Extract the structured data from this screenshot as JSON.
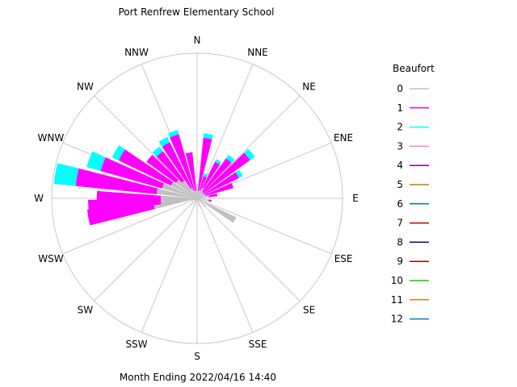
{
  "chart_data": {
    "type": "wind-rose",
    "title": "Port Renfrew Elementary School",
    "subtitle": "Month Ending 2022/04/16 14:40",
    "directions": [
      "N",
      "NNE",
      "NE",
      "ENE",
      "E",
      "ESE",
      "SE",
      "SSE",
      "S",
      "SSW",
      "SW",
      "WSW",
      "W",
      "WNW",
      "NW",
      "NNW"
    ],
    "sector_angles_deg": [
      0,
      22.5,
      45,
      67.5,
      90,
      112.5,
      135,
      157.5,
      180,
      202.5,
      225,
      247.5,
      270,
      292.5,
      315,
      337.5
    ],
    "legend": {
      "title": "Beaufort",
      "entries": [
        {
          "label": "0",
          "color": "#c0c0c0"
        },
        {
          "label": "1",
          "color": "#ff00ff"
        },
        {
          "label": "2",
          "color": "#00ffff"
        },
        {
          "label": "3",
          "color": "#ff80c0"
        },
        {
          "label": "4",
          "color": "#8000a0"
        },
        {
          "label": "5",
          "color": "#c08000"
        },
        {
          "label": "6",
          "color": "#008080"
        },
        {
          "label": "7",
          "color": "#c00000"
        },
        {
          "label": "8",
          "color": "#000080"
        },
        {
          "label": "9",
          "color": "#a00000"
        },
        {
          "label": "10",
          "color": "#00d000"
        },
        {
          "label": "11",
          "color": "#e08000"
        },
        {
          "label": "12",
          "color": "#0080c0"
        }
      ]
    },
    "scale_max": 1.0,
    "bars_note": "values are fractions of the outer ring radius; each bar stacked gray(0) -> magenta(1) -> cyan(2)",
    "bars": [
      {
        "angle": 0,
        "values": [
          0.1,
          0.0,
          0.0
        ]
      },
      {
        "angle": 10,
        "values": [
          0.05,
          0.37,
          0.03
        ]
      },
      {
        "angle": 20,
        "values": [
          0.06,
          0.1,
          0.02
        ]
      },
      {
        "angle": 30,
        "values": [
          0.08,
          0.2,
          0.02
        ]
      },
      {
        "angle": 40,
        "values": [
          0.06,
          0.28,
          0.03
        ]
      },
      {
        "angle": 50,
        "values": [
          0.05,
          0.4,
          0.04
        ]
      },
      {
        "angle": 60,
        "values": [
          0.06,
          0.26,
          0.03
        ]
      },
      {
        "angle": 70,
        "values": [
          0.06,
          0.2,
          0.0
        ]
      },
      {
        "angle": 80,
        "values": [
          0.08,
          0.06,
          0.0
        ]
      },
      {
        "angle": 100,
        "values": [
          0.08,
          0.02,
          0.0
        ]
      },
      {
        "angle": 120,
        "values": [
          0.3,
          0.0,
          0.0
        ]
      },
      {
        "angle": 135,
        "values": [
          0.08,
          0.0,
          0.0
        ]
      },
      {
        "angle": 160,
        "values": [
          0.06,
          0.0,
          0.0
        ]
      },
      {
        "angle": 180,
        "values": [
          0.05,
          0.0,
          0.0
        ]
      },
      {
        "angle": 200,
        "values": [
          0.05,
          0.0,
          0.0
        ]
      },
      {
        "angle": 225,
        "values": [
          0.06,
          0.0,
          0.0
        ]
      },
      {
        "angle": 250,
        "values": [
          0.04,
          0.0,
          0.0
        ]
      },
      {
        "angle": 260,
        "values": [
          0.3,
          0.46,
          0.0
        ]
      },
      {
        "angle": 265,
        "values": [
          0.25,
          0.5,
          0.0
        ]
      },
      {
        "angle": 270,
        "values": [
          0.25,
          0.44,
          0.0
        ]
      },
      {
        "angle": 280,
        "values": [
          0.28,
          0.56,
          0.15
        ]
      },
      {
        "angle": 290,
        "values": [
          0.25,
          0.44,
          0.1
        ]
      },
      {
        "angle": 300,
        "values": [
          0.2,
          0.4,
          0.05
        ]
      },
      {
        "angle": 310,
        "values": [
          0.18,
          0.25,
          0.0
        ]
      },
      {
        "angle": 320,
        "values": [
          0.15,
          0.25,
          0.04
        ]
      },
      {
        "angle": 330,
        "values": [
          0.08,
          0.35,
          0.04
        ]
      },
      {
        "angle": 340,
        "values": [
          0.06,
          0.4,
          0.03
        ]
      },
      {
        "angle": 350,
        "values": [
          0.05,
          0.27,
          0.0
        ]
      }
    ]
  }
}
